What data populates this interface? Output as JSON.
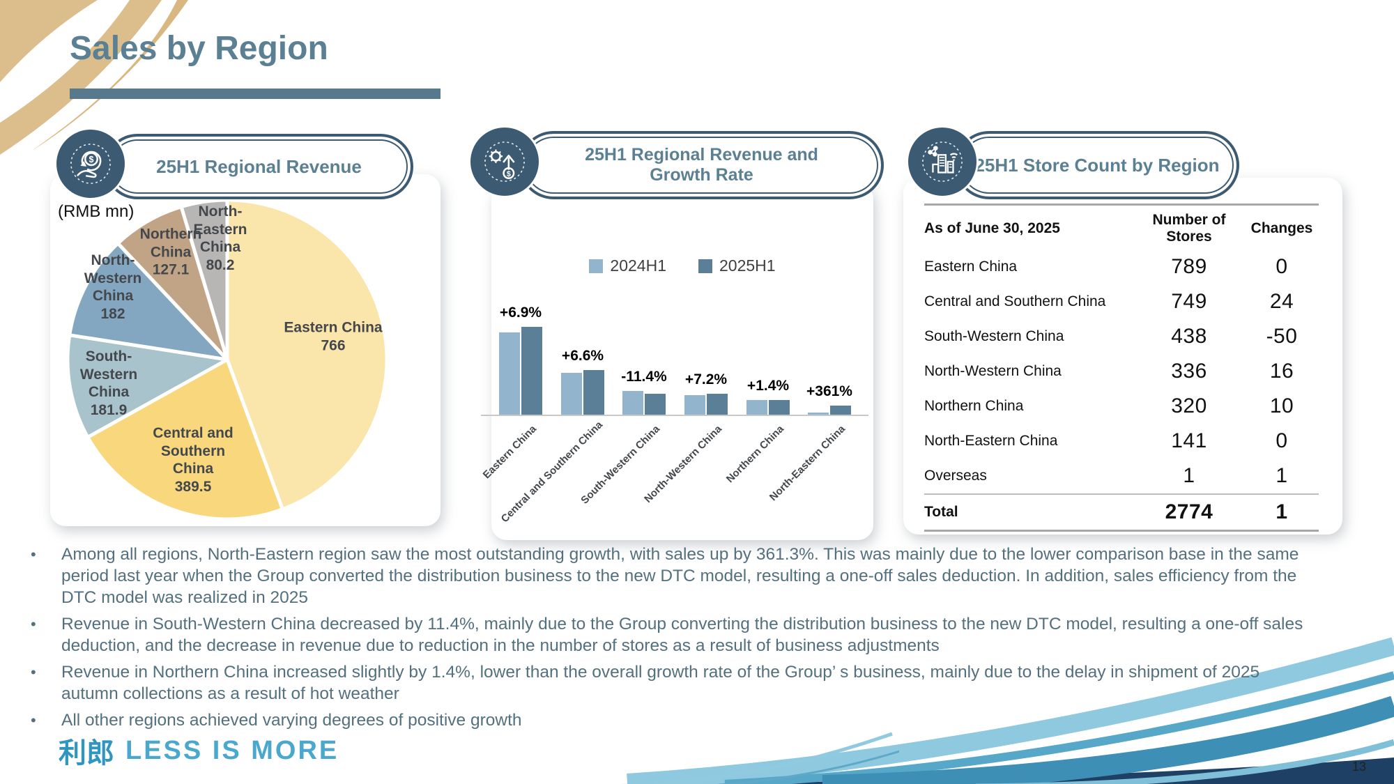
{
  "slide": {
    "title": "Sales by Region",
    "page_number": "13",
    "logo_cjk": "利郎",
    "logo_wordmark": "LESS IS MORE"
  },
  "panels": {
    "pie": {
      "header": "25H1 Regional Revenue",
      "unit_note": "(RMB mn)"
    },
    "bar": {
      "header": "25H1 Regional Revenue and Growth Rate"
    },
    "table": {
      "header": "25H1 Store Count by Region"
    }
  },
  "bullets": [
    "Among all regions, North-Eastern region saw the most outstanding growth, with sales up by 361.3%. This was mainly due to the lower comparison base in the same period last year when the Group converted the distribution business to the new DTC model, resulting a one-off sales deduction. In addition, sales efficiency from the DTC model was realized in 2025",
    "Revenue in South-Western China decreased by 11.4%, mainly due to the Group converting the distribution business to the new DTC model, resulting a one-off sales deduction, and the decrease in revenue due to reduction in the number of stores as a result of business adjustments",
    "Revenue in Northern China increased slightly by 1.4%, lower than the overall growth rate of the Group’ s business, mainly due to the delay in shipment of 2025 autumn collections as a result of hot weather",
    "All other regions achieved varying degrees of positive growth"
  ],
  "chart_data": [
    {
      "type": "pie",
      "title": "25H1 Regional Revenue",
      "unit": "RMB mn",
      "labels": [
        "Eastern China",
        "Central and Southern China",
        "South-Western China",
        "North-Western China",
        "Northern China",
        "North-Eastern China"
      ],
      "values": [
        766,
        389.5,
        181.9,
        182,
        127.1,
        80.2
      ],
      "value_labels": [
        "766",
        "389.5",
        "181.9",
        "182",
        "127.1",
        "80.2"
      ],
      "colors": [
        "#FAE5AB",
        "#F8D77D",
        "#A8C3CB",
        "#84A7C1",
        "#C1A485",
        "#B7B6B4"
      ]
    },
    {
      "type": "bar",
      "title": "25H1 Regional Revenue and Growth Rate",
      "categories": [
        "Eastern China",
        "Central and Southern China",
        "South-Western China",
        "North-Western China",
        "Northern China",
        "North-Eastern China"
      ],
      "series": [
        {
          "name": "2024H1",
          "color": "#92B4CC",
          "values": [
            717,
            365,
            205,
            170,
            125,
            17
          ]
        },
        {
          "name": "2025H1",
          "color": "#5A7F97",
          "values": [
            766,
            389.5,
            181.9,
            182,
            127.1,
            80.2
          ]
        }
      ],
      "growth_labels": [
        "+6.9%",
        "+6.6%",
        "-11.4%",
        "+7.2%",
        "+1.4%",
        "+361%"
      ],
      "legend_position": "top",
      "y_axis_visible": false
    },
    {
      "type": "table",
      "title": "25H1 Store Count by Region",
      "columns": [
        "As of June 30, 2025",
        "Number of Stores",
        "Changes"
      ],
      "rows": [
        {
          "region": "Eastern China",
          "stores": "789",
          "changes": "0"
        },
        {
          "region": "Central and Southern China",
          "stores": "749",
          "changes": "24"
        },
        {
          "region": "South-Western China",
          "stores": "438",
          "changes": "-50"
        },
        {
          "region": "North-Western China",
          "stores": "336",
          "changes": "16"
        },
        {
          "region": "Northern China",
          "stores": "320",
          "changes": "10"
        },
        {
          "region": "North-Eastern China",
          "stores": "141",
          "changes": "0"
        },
        {
          "region": "Overseas",
          "stores": "1",
          "changes": "1"
        },
        {
          "region": "Total",
          "stores": "2774",
          "changes": "1"
        }
      ]
    }
  ],
  "colors": {
    "title_slate": "#5B7F93",
    "pill_border": "#3C5A72",
    "bullet_text": "#53707E",
    "logo_blue": "#4AA8CF",
    "deco_tan": "#DCBD8C",
    "deco_navy": "#1D4064"
  }
}
